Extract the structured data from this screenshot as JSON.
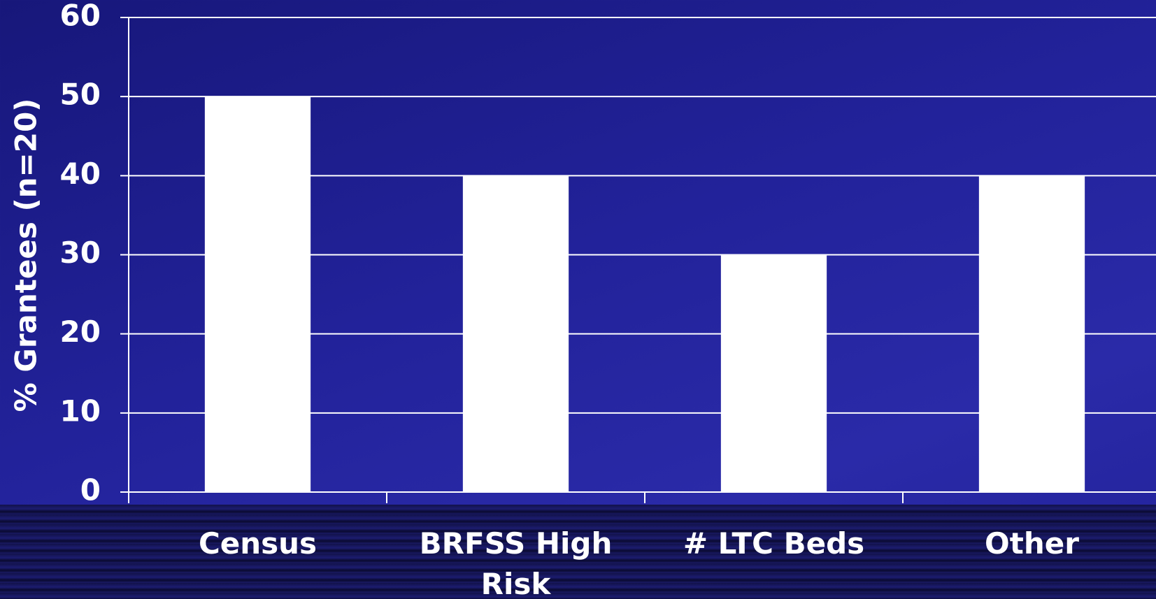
{
  "chart_data": {
    "type": "bar",
    "y_label": "% Grantees (n=20)",
    "categories": [
      "Census",
      "BRFSS High Risk",
      "# LTC Beds",
      "Other"
    ],
    "values": [
      50,
      40,
      30,
      40
    ],
    "color": "#ffffff",
    "ylim": [
      0,
      60
    ],
    "yticks": [
      0,
      10,
      20,
      30,
      40,
      50,
      60
    ],
    "grid": true
  }
}
